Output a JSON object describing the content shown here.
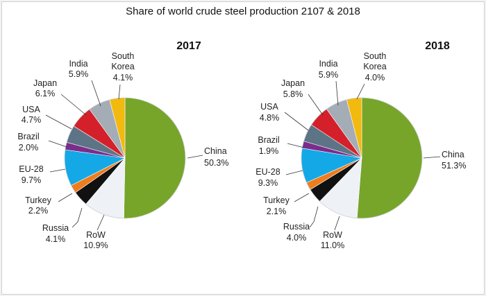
{
  "title": "Share of world crude steel production 2107 & 2018",
  "chart_data": [
    {
      "type": "pie",
      "title": "2017",
      "slices": [
        {
          "name": "China",
          "value": 50.3,
          "label": "50.3%",
          "color": "#77a52a"
        },
        {
          "name": "RoW",
          "value": 10.9,
          "label": "10.9%",
          "color": "#eef1f5"
        },
        {
          "name": "Russia",
          "value": 4.1,
          "label": "4.1%",
          "color": "#111111"
        },
        {
          "name": "Turkey",
          "value": 2.2,
          "label": "2.2%",
          "color": "#ee7d1e"
        },
        {
          "name": "EU-28",
          "value": 9.7,
          "label": "9.7%",
          "color": "#14a8e6"
        },
        {
          "name": "Brazil",
          "value": 2.0,
          "label": "2.0%",
          "color": "#7b2d8b"
        },
        {
          "name": "USA",
          "value": 4.7,
          "label": "4.7%",
          "color": "#5d7486"
        },
        {
          "name": "Japan",
          "value": 6.1,
          "label": "6.1%",
          "color": "#d4202a"
        },
        {
          "name": "India",
          "value": 5.9,
          "label": "5.9%",
          "color": "#a4adb6"
        },
        {
          "name": "South\nKorea",
          "value": 4.1,
          "label": "4.1%",
          "color": "#f2b90f"
        }
      ]
    },
    {
      "type": "pie",
      "title": "2018",
      "slices": [
        {
          "name": "China",
          "value": 51.3,
          "label": "51.3%",
          "color": "#77a52a"
        },
        {
          "name": "RoW",
          "value": 11.0,
          "label": "11.0%",
          "color": "#eef1f5"
        },
        {
          "name": "Russia",
          "value": 4.0,
          "label": "4.0%",
          "color": "#111111"
        },
        {
          "name": "Turkey",
          "value": 2.1,
          "label": "2.1%",
          "color": "#ee7d1e"
        },
        {
          "name": "EU-28",
          "value": 9.3,
          "label": "9.3%",
          "color": "#14a8e6"
        },
        {
          "name": "Brazil",
          "value": 1.9,
          "label": "1.9%",
          "color": "#7b2d8b"
        },
        {
          "name": "USA",
          "value": 4.8,
          "label": "4.8%",
          "color": "#5d7486"
        },
        {
          "name": "Japan",
          "value": 5.8,
          "label": "5.8%",
          "color": "#d4202a"
        },
        {
          "name": "India",
          "value": 5.9,
          "label": "5.9%",
          "color": "#a4adb6"
        },
        {
          "name": "South\nKorea",
          "value": 4.0,
          "label": "4.0%",
          "color": "#f2b90f"
        }
      ]
    }
  ]
}
